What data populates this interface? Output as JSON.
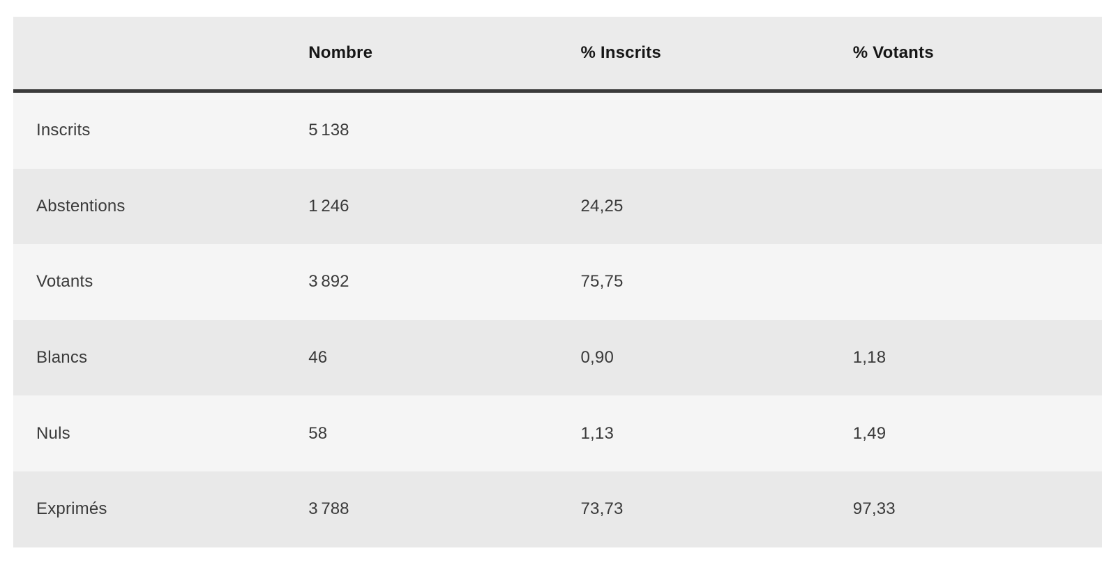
{
  "style": {
    "page_bg": "#ffffff",
    "header_bg": "#ebebeb",
    "row_light_bg": "#f5f5f5",
    "row_dark_bg": "#e9e9e9",
    "header_border_color": "#3a3a3a",
    "header_text_color": "#161616",
    "body_text_color": "#3a3a3a"
  },
  "chart_data": {
    "type": "table",
    "title": "",
    "columns": [
      "",
      "Nombre",
      "% Inscrits",
      "% Votants"
    ],
    "rows": [
      {
        "label": "Inscrits",
        "nombre": "5 138",
        "pct_inscrits": "",
        "pct_votants": ""
      },
      {
        "label": "Abstentions",
        "nombre": "1 246",
        "pct_inscrits": "24,25",
        "pct_votants": ""
      },
      {
        "label": "Votants",
        "nombre": "3 892",
        "pct_inscrits": "75,75",
        "pct_votants": ""
      },
      {
        "label": "Blancs",
        "nombre": "46",
        "pct_inscrits": "0,90",
        "pct_votants": "1,18"
      },
      {
        "label": "Nuls",
        "nombre": "58",
        "pct_inscrits": "1,13",
        "pct_votants": "1,49"
      },
      {
        "label": "Exprimés",
        "nombre": "3 788",
        "pct_inscrits": "73,73",
        "pct_votants": "97,33"
      }
    ]
  }
}
